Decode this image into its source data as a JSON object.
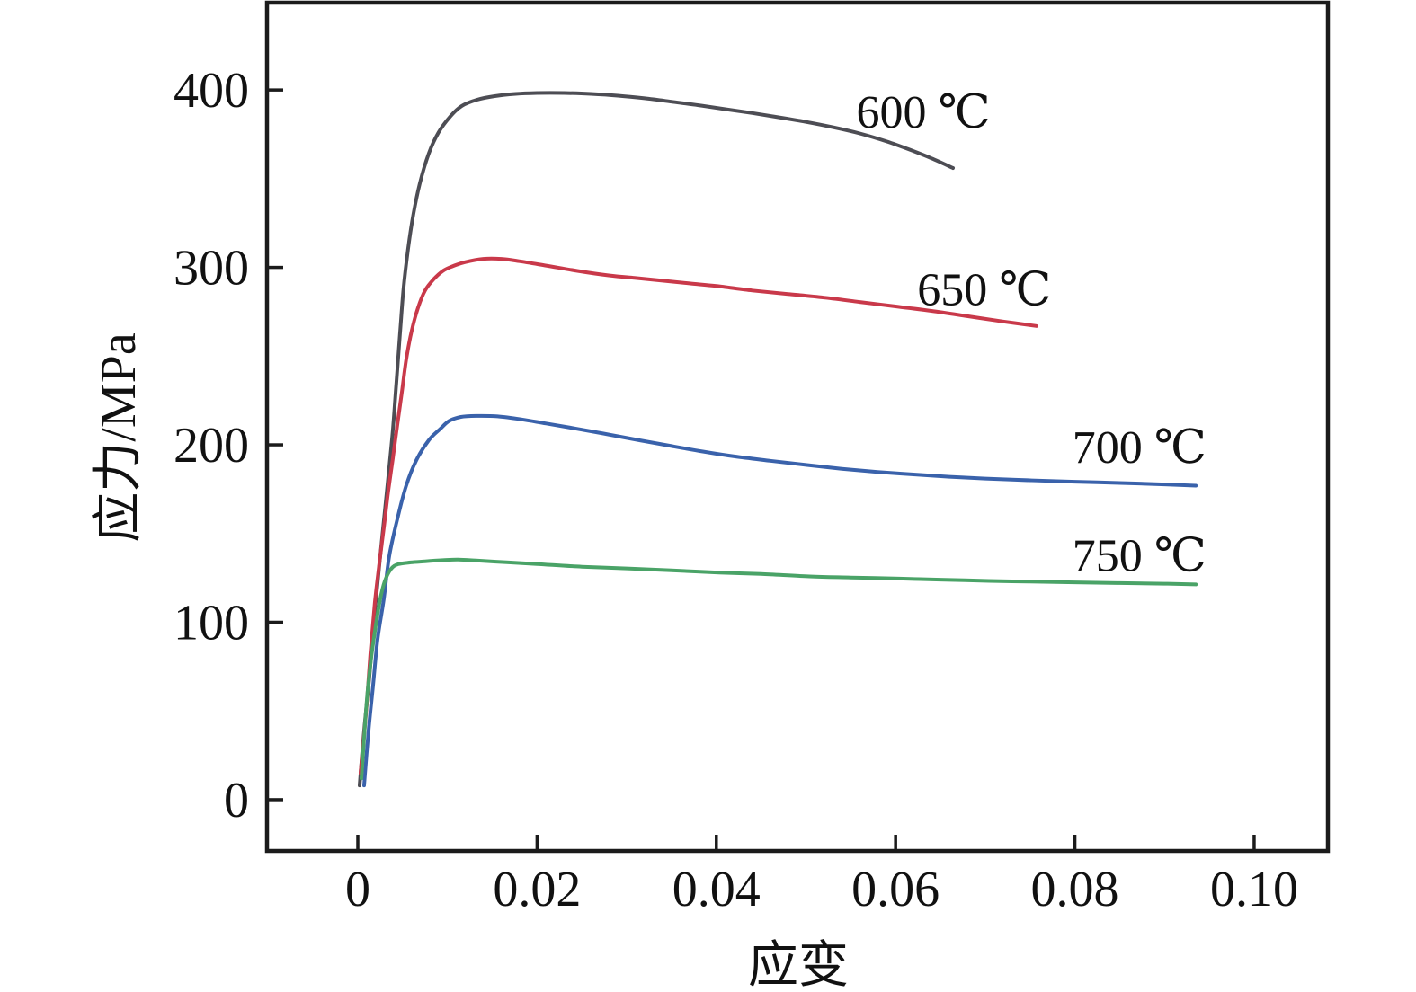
{
  "chart_data": {
    "type": "line",
    "title": "",
    "xlabel": "应变",
    "ylabel": "应力/MPa",
    "xlim": [
      -0.01013,
      0.10823
    ],
    "ylim": [
      -28.9,
      449.2
    ],
    "grid": false,
    "legend_position": "inline-annotations",
    "axis_color": "#1b1b1b",
    "x_ticks": {
      "values": [
        0,
        0.02,
        0.04,
        0.06,
        0.08,
        0.1
      ],
      "labels": [
        "0",
        "0.02",
        "0.04",
        "0.06",
        "0.08",
        "0.10"
      ]
    },
    "y_ticks": {
      "values": [
        0,
        100,
        200,
        300,
        400
      ],
      "labels": [
        "0",
        "100",
        "200",
        "300",
        "400"
      ]
    },
    "series": [
      {
        "name": "600 ℃",
        "color": "#4d4d54",
        "points": [
          [
            0.0002,
            8
          ],
          [
            0.0007,
            39
          ],
          [
            0.0013,
            70
          ],
          [
            0.0019,
            106
          ],
          [
            0.0024,
            132
          ],
          [
            0.0029,
            157
          ],
          [
            0.0034,
            182
          ],
          [
            0.0039,
            208
          ],
          [
            0.0043,
            235
          ],
          [
            0.0047,
            262
          ],
          [
            0.0051,
            288
          ],
          [
            0.0056,
            310
          ],
          [
            0.0062,
            330
          ],
          [
            0.0069,
            347
          ],
          [
            0.0079,
            364
          ],
          [
            0.009,
            376
          ],
          [
            0.0103,
            385
          ],
          [
            0.0116,
            391
          ],
          [
            0.0133,
            394.5
          ],
          [
            0.0152,
            396.5
          ],
          [
            0.0176,
            397.8
          ],
          [
            0.02,
            398.3
          ],
          [
            0.023,
            398.3
          ],
          [
            0.026,
            397.8
          ],
          [
            0.029,
            396.8
          ],
          [
            0.032,
            395.3
          ],
          [
            0.035,
            393.4
          ],
          [
            0.038,
            391.4
          ],
          [
            0.041,
            389.2
          ],
          [
            0.044,
            387
          ],
          [
            0.047,
            384.6
          ],
          [
            0.05,
            382
          ],
          [
            0.053,
            379
          ],
          [
            0.056,
            375.5
          ],
          [
            0.059,
            371
          ],
          [
            0.0615,
            366.5
          ],
          [
            0.064,
            361.5
          ],
          [
            0.0664,
            356
          ]
        ]
      },
      {
        "name": "650 ℃",
        "color": "#c9394a",
        "points": [
          [
            0.0003,
            15
          ],
          [
            0.0009,
            48
          ],
          [
            0.0014,
            82
          ],
          [
            0.0019,
            111
          ],
          [
            0.0024,
            133
          ],
          [
            0.0029,
            153
          ],
          [
            0.0034,
            174
          ],
          [
            0.0039,
            192
          ],
          [
            0.0044,
            211
          ],
          [
            0.0049,
            229
          ],
          [
            0.0054,
            248
          ],
          [
            0.006,
            264
          ],
          [
            0.0067,
            277
          ],
          [
            0.0075,
            287
          ],
          [
            0.0085,
            293.5
          ],
          [
            0.0095,
            298
          ],
          [
            0.0105,
            300.5
          ],
          [
            0.012,
            303
          ],
          [
            0.014,
            304.8
          ],
          [
            0.016,
            304.8
          ],
          [
            0.018,
            303.5
          ],
          [
            0.021,
            301
          ],
          [
            0.0245,
            298
          ],
          [
            0.028,
            295.5
          ],
          [
            0.031,
            294
          ],
          [
            0.034,
            292.5
          ],
          [
            0.037,
            291
          ],
          [
            0.04,
            289.5
          ],
          [
            0.044,
            287
          ],
          [
            0.048,
            285
          ],
          [
            0.052,
            283
          ],
          [
            0.056,
            280.5
          ],
          [
            0.06,
            278
          ],
          [
            0.064,
            275.5
          ],
          [
            0.068,
            272.5
          ],
          [
            0.072,
            269.5
          ],
          [
            0.0757,
            267
          ]
        ]
      },
      {
        "name": "700 ℃",
        "color": "#3a62ab",
        "points": [
          [
            0.0007,
            8
          ],
          [
            0.0012,
            39
          ],
          [
            0.0017,
            64
          ],
          [
            0.0022,
            90
          ],
          [
            0.0029,
            113
          ],
          [
            0.0035,
            137
          ],
          [
            0.0044,
            158
          ],
          [
            0.0054,
            177
          ],
          [
            0.0065,
            191
          ],
          [
            0.0079,
            202.5
          ],
          [
            0.0092,
            209
          ],
          [
            0.0102,
            213.5
          ],
          [
            0.0115,
            215.7
          ],
          [
            0.0132,
            216.3
          ],
          [
            0.0156,
            216
          ],
          [
            0.0183,
            214.3
          ],
          [
            0.021,
            212
          ],
          [
            0.0245,
            209
          ],
          [
            0.028,
            205.8
          ],
          [
            0.0315,
            202.5
          ],
          [
            0.035,
            199.3
          ],
          [
            0.0385,
            196.2
          ],
          [
            0.042,
            193.5
          ],
          [
            0.046,
            191
          ],
          [
            0.05,
            188.7
          ],
          [
            0.054,
            186.5
          ],
          [
            0.058,
            184.7
          ],
          [
            0.062,
            183.3
          ],
          [
            0.066,
            182
          ],
          [
            0.07,
            181
          ],
          [
            0.075,
            180
          ],
          [
            0.08,
            179.2
          ],
          [
            0.085,
            178.5
          ],
          [
            0.09,
            177.7
          ],
          [
            0.0935,
            177
          ]
        ]
      },
      {
        "name": "750 ℃",
        "color": "#4aa367",
        "points": [
          [
            0.0004,
            12
          ],
          [
            0.001,
            56
          ],
          [
            0.0015,
            80
          ],
          [
            0.002,
            98
          ],
          [
            0.0025,
            113
          ],
          [
            0.003,
            123
          ],
          [
            0.0037,
            130
          ],
          [
            0.0045,
            132.7
          ],
          [
            0.0059,
            133.7
          ],
          [
            0.0075,
            134.3
          ],
          [
            0.0095,
            135
          ],
          [
            0.0112,
            135.3
          ],
          [
            0.0132,
            134.8
          ],
          [
            0.0166,
            133.8
          ],
          [
            0.02,
            132.8
          ],
          [
            0.025,
            131.3
          ],
          [
            0.0303,
            130.3
          ],
          [
            0.035,
            129.2
          ],
          [
            0.0403,
            128
          ],
          [
            0.045,
            127.2
          ],
          [
            0.0504,
            125.8
          ],
          [
            0.055,
            125.2
          ],
          [
            0.0604,
            124.6
          ],
          [
            0.065,
            124
          ],
          [
            0.0704,
            123.3
          ],
          [
            0.075,
            122.9
          ],
          [
            0.08,
            122.5
          ],
          [
            0.085,
            122.1
          ],
          [
            0.09,
            121.7
          ],
          [
            0.0935,
            121.3
          ]
        ]
      }
    ],
    "annotations": [
      {
        "text": "600 ℃",
        "x": 0.0631,
        "y": 388,
        "color": "#111111"
      },
      {
        "text": "650 ℃",
        "x": 0.0699,
        "y": 288,
        "color": "#111111"
      },
      {
        "text": "700 ℃",
        "x": 0.0872,
        "y": 199,
        "color": "#111111"
      },
      {
        "text": "750 ℃",
        "x": 0.0872,
        "y": 138,
        "color": "#111111"
      }
    ]
  }
}
